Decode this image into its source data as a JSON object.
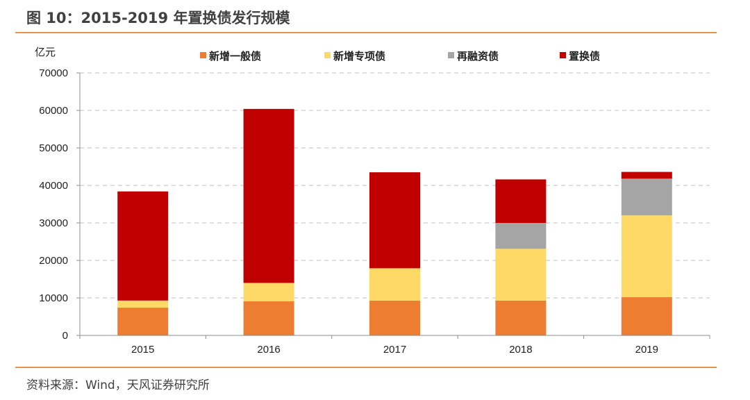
{
  "header": {
    "title": "图 10：2015-2019 年置换债发行规模"
  },
  "footer": {
    "source": "资料来源：Wind，天风证券研究所"
  },
  "chart_data": {
    "type": "bar",
    "stacked": true,
    "title": "图 10：2015-2019 年置换债发行规模",
    "xlabel": "",
    "ylabel": "",
    "unit_label": "亿元",
    "categories": [
      "2015",
      "2016",
      "2017",
      "2018",
      "2019"
    ],
    "ylim": [
      0,
      70000
    ],
    "yticks": [
      0,
      10000,
      20000,
      30000,
      40000,
      50000,
      60000,
      70000
    ],
    "grid": true,
    "legend_position": "top",
    "series": [
      {
        "name": "新增一般债",
        "color": "#ed7d31",
        "values": [
          7400,
          9100,
          9300,
          9300,
          10200
        ]
      },
      {
        "name": "新增专项债",
        "color": "#ffd966",
        "values": [
          1900,
          4900,
          8600,
          13800,
          21800
        ]
      },
      {
        "name": "再融资债",
        "color": "#a5a5a5",
        "values": [
          0,
          0,
          0,
          6900,
          9800
        ]
      },
      {
        "name": "置换债",
        "color": "#c00000",
        "values": [
          29100,
          46400,
          25600,
          11600,
          1800
        ]
      }
    ]
  }
}
